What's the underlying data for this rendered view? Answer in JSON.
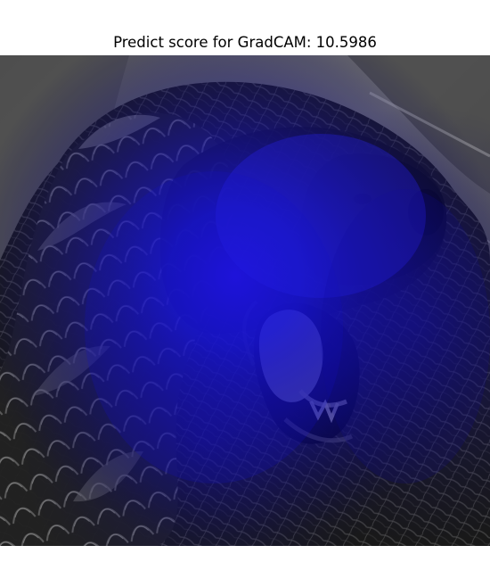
{
  "figure": {
    "title": "Predict score for GradCAM: 10.5986"
  },
  "image": {
    "subject": "dog",
    "overlay": "gradcam-heatmap",
    "colors": {
      "background_gray": "#7a7a7a",
      "fur_dark": "#151515",
      "fur_mid": "#3b3b3b",
      "highlight_gray": "#a8a8a8",
      "heatmap_blue": "#1f18ff",
      "heatmap_deep": "#0d0aa8"
    }
  }
}
